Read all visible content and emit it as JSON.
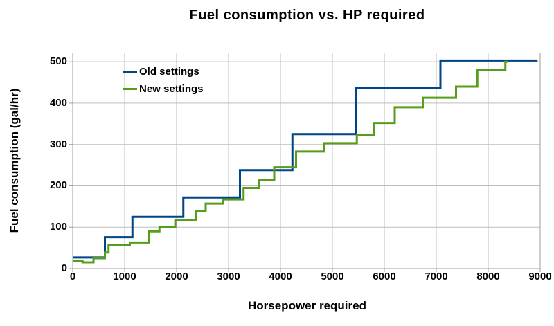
{
  "chart_data": {
    "type": "line",
    "line_style": "step-after",
    "title": "Fuel consumption vs. HP required",
    "xlabel": "Horsepower required",
    "ylabel": "Fuel consumption (gal/hr)",
    "xlim": [
      0,
      9000
    ],
    "ylim": [
      0,
      522
    ],
    "x_ticks": [
      0,
      1000,
      2000,
      3000,
      4000,
      5000,
      6000,
      7000,
      8000,
      9000
    ],
    "y_ticks": [
      0,
      100,
      200,
      300,
      400,
      500
    ],
    "grid": true,
    "legend_position": "inside-top-left",
    "colors": {
      "grid": "#bdbdbd",
      "axis": "#9e9e9e",
      "text": "#000000"
    },
    "series": [
      {
        "name": "Old settings",
        "color": "#004586",
        "step_points": [
          [
            0,
            27
          ],
          [
            620,
            76
          ],
          [
            1150,
            125
          ],
          [
            2130,
            172
          ],
          [
            3220,
            238
          ],
          [
            4230,
            325
          ],
          [
            5450,
            436
          ],
          [
            7080,
            503
          ],
          [
            8950,
            503
          ]
        ]
      },
      {
        "name": "New settings",
        "color": "#579d1c",
        "step_points": [
          [
            0,
            19
          ],
          [
            190,
            15
          ],
          [
            400,
            25
          ],
          [
            620,
            39
          ],
          [
            690,
            56
          ],
          [
            1100,
            63
          ],
          [
            1470,
            90
          ],
          [
            1670,
            100
          ],
          [
            1975,
            118
          ],
          [
            2370,
            139
          ],
          [
            2560,
            157
          ],
          [
            2890,
            167
          ],
          [
            3290,
            195
          ],
          [
            3580,
            214
          ],
          [
            3880,
            245
          ],
          [
            4300,
            283
          ],
          [
            4845,
            303
          ],
          [
            5470,
            322
          ],
          [
            5800,
            352
          ],
          [
            6200,
            390
          ],
          [
            6740,
            413
          ],
          [
            7380,
            440
          ],
          [
            7790,
            480
          ],
          [
            8330,
            500
          ],
          [
            8380,
            500
          ]
        ]
      }
    ]
  }
}
